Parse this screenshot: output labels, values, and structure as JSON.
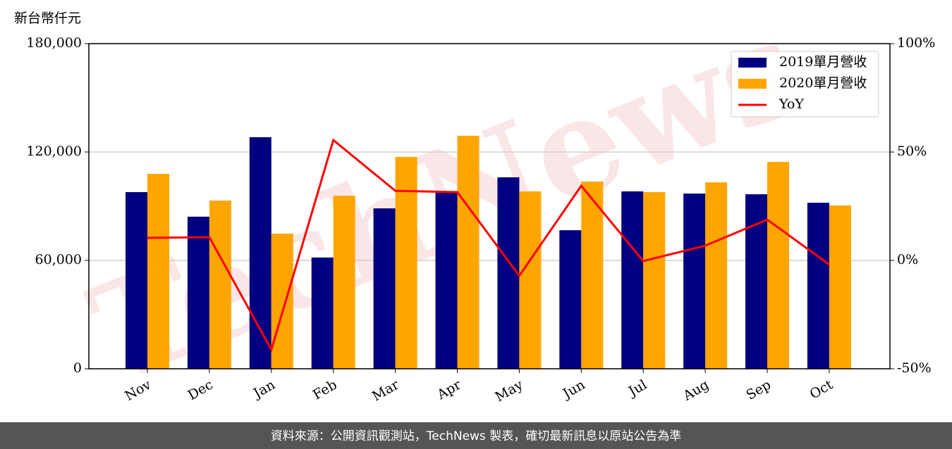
{
  "chart_data": {
    "type": "bar_line",
    "y_label": "新台幣仟元",
    "watermark": "TechNews",
    "categories": [
      "Nov",
      "Dec",
      "Jan",
      "Feb",
      "Mar",
      "Apr",
      "May",
      "Jun",
      "Jul",
      "Aug",
      "Sep",
      "Oct"
    ],
    "series": [
      {
        "name": "2019單月營收",
        "color": "#000080",
        "type": "bar",
        "values": [
          97800,
          84200,
          128200,
          61600,
          88800,
          97800,
          106000,
          76700,
          98200,
          97000,
          96600,
          91900
        ]
      },
      {
        "name": "2020單月營收",
        "color": "#ffa500",
        "type": "bar",
        "values": [
          107900,
          93100,
          74800,
          95800,
          117300,
          129000,
          98200,
          103600,
          97800,
          103200,
          114500,
          90400
        ]
      },
      {
        "name": "YoY",
        "color": "#ff0000",
        "type": "line",
        "axis": "y2",
        "values": [
          10.4,
          10.7,
          -41.2,
          55.5,
          32.1,
          31.5,
          -7.1,
          34.4,
          -0.3,
          6.8,
          18.8,
          -1.9
        ]
      }
    ],
    "ylim": [
      0,
      180000
    ],
    "yticks": [
      0,
      {
        "value": 60000,
        "label": "60,000"
      },
      {
        "value": 120000,
        "label": "120,000"
      },
      {
        "value": 180000,
        "label": "180,000"
      }
    ],
    "y2lim": [
      -50,
      100
    ],
    "y2ticks": [
      {
        "value": -50,
        "label": "-50%"
      },
      {
        "value": 0,
        "label": "0%"
      },
      {
        "value": 50,
        "label": "50%"
      },
      {
        "value": 100,
        "label": "100%"
      }
    ],
    "grid": true,
    "legend": "upper right"
  },
  "footer": "資料來源：公開資訊觀測站，TechNews 製表，確切最新訊息以原站公告為準"
}
